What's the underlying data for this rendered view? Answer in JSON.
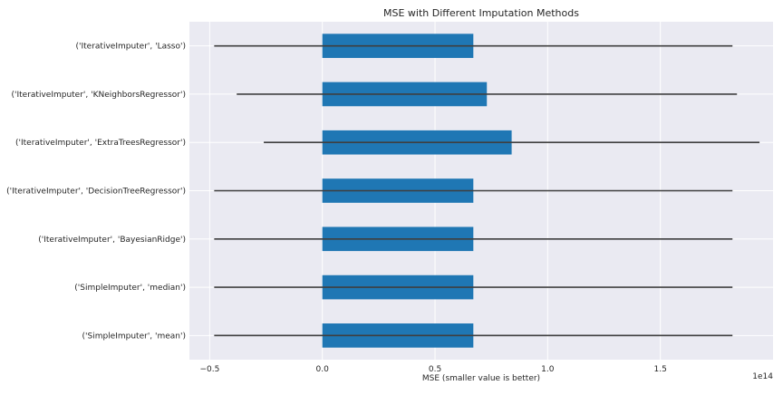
{
  "chart_data": {
    "type": "bar",
    "orientation": "horizontal",
    "title": "MSE with Different Imputation Methods",
    "xlabel": "MSE (smaller value is better)",
    "ylabel": "",
    "x_offset_label": "1e14",
    "x_scale": 100000000000000,
    "xlim": [
      -0.59,
      2.0
    ],
    "xticks": [
      -0.5,
      0.0,
      0.5,
      1.0,
      1.5
    ],
    "xtick_labels": [
      "−0.5",
      "0.0",
      "0.5",
      "1.0",
      "1.5"
    ],
    "categories": [
      "('IterativeImputer', 'Lasso')",
      "('IterativeImputer', 'KNeighborsRegressor')",
      "('IterativeImputer', 'ExtraTreesRegressor')",
      "('IterativeImputer', 'DecisionTreeRegressor')",
      "('IterativeImputer', 'BayesianRidge')",
      "('SimpleImputer', 'median')",
      "('SimpleImputer', 'mean')"
    ],
    "values": [
      0.67,
      0.73,
      0.84,
      0.67,
      0.67,
      0.67,
      0.67
    ],
    "errors": [
      1.15,
      1.11,
      1.1,
      1.15,
      1.15,
      1.15,
      1.15
    ],
    "bar_color": "#1f77b4",
    "errorbar_color": "#3f3f3f",
    "grid": true,
    "background_color": "#eaeaf2"
  }
}
